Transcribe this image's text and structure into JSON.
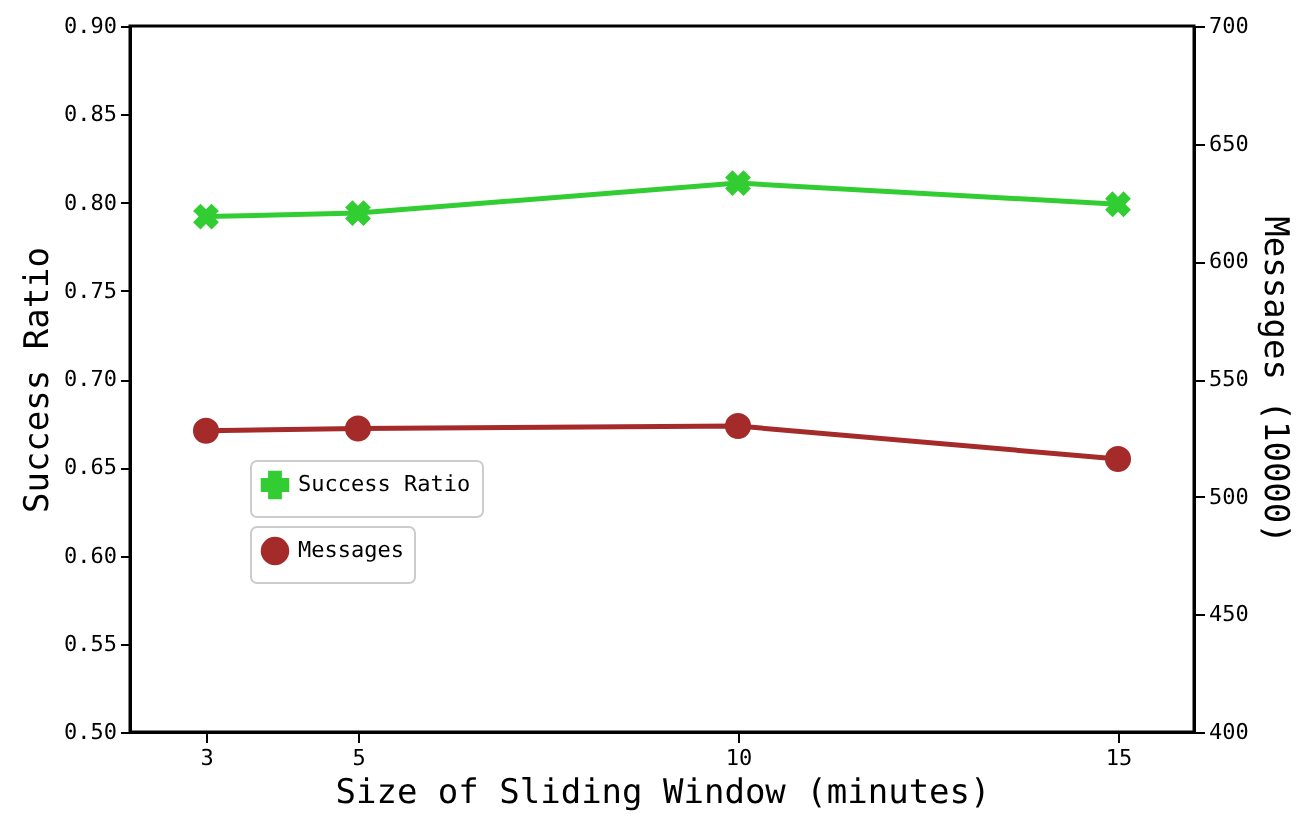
{
  "chart_data": {
    "type": "line",
    "xlabel": "Size of Sliding Window (minutes)",
    "ylabel": "Success Ratio",
    "y2label": "Messages (10000)",
    "x": [
      3,
      5,
      10,
      15
    ],
    "xlim": [
      2,
      16
    ],
    "xticks": [
      3,
      5,
      10,
      15
    ],
    "ylim": [
      0.5,
      0.9
    ],
    "yticks": [
      {
        "value": 0.5,
        "label": "0.50"
      },
      {
        "value": 0.55,
        "label": "0.55"
      },
      {
        "value": 0.6,
        "label": "0.60"
      },
      {
        "value": 0.65,
        "label": "0.65"
      },
      {
        "value": 0.7,
        "label": "0.70"
      },
      {
        "value": 0.75,
        "label": "0.75"
      },
      {
        "value": 0.8,
        "label": "0.80"
      },
      {
        "value": 0.85,
        "label": "0.85"
      },
      {
        "value": 0.9,
        "label": "0.90"
      }
    ],
    "y2lim": [
      400,
      700
    ],
    "y2ticks": [
      400,
      450,
      500,
      550,
      600,
      650,
      700
    ],
    "series": [
      {
        "name": "Success Ratio",
        "color": "#32cd32",
        "marker": "cross",
        "values": [
          0.792,
          0.794,
          0.811,
          0.799
        ]
      },
      {
        "name": "Messages",
        "color": "#a52a2a",
        "marker": "circle",
        "axis": "y2",
        "values": [
          528,
          529,
          530,
          516
        ]
      }
    ],
    "legend": "center left",
    "grid": false,
    "line_style": "solid"
  }
}
